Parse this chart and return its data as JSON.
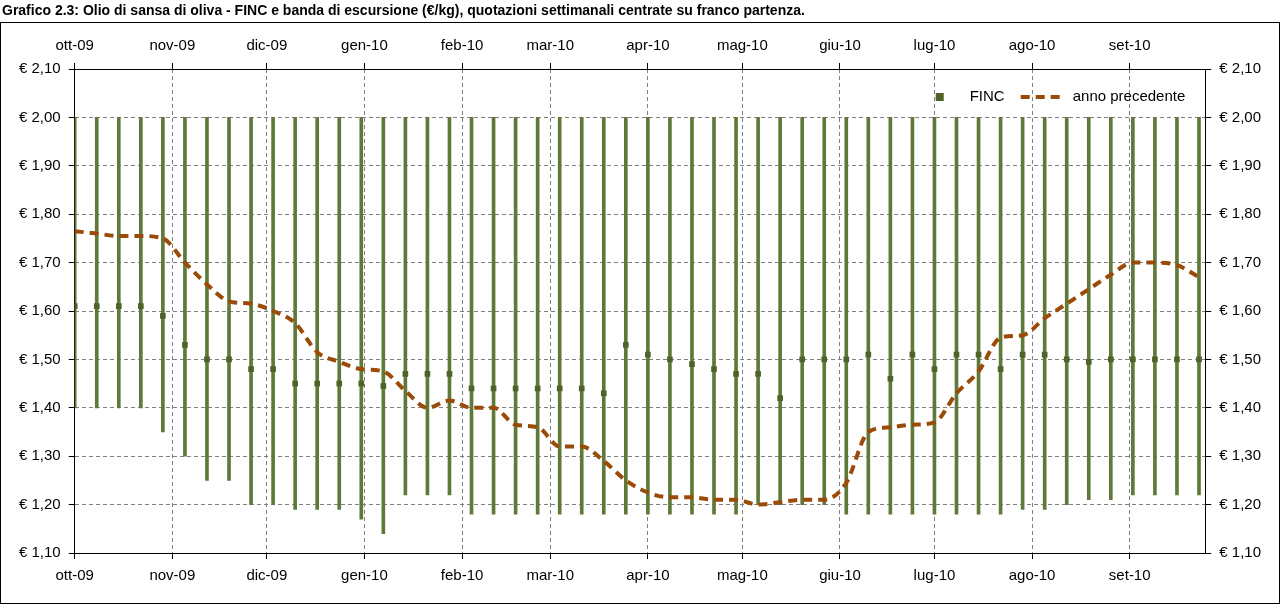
{
  "chart_data": {
    "type": "bar",
    "title": "Grafico 2.3: Olio di sansa di oliva - FINC e banda di escursione (€/kg), quotazioni settimanali centrate su franco partenza.",
    "x": [
      "2009-10-01",
      "2009-10-08",
      "2009-10-15",
      "2009-10-22",
      "2009-10-29",
      "2009-11-05",
      "2009-11-12",
      "2009-11-19",
      "2009-11-26",
      "2009-12-03",
      "2009-12-10",
      "2009-12-17",
      "2009-12-24",
      "2009-12-31",
      "2010-01-07",
      "2010-01-14",
      "2010-01-21",
      "2010-01-28",
      "2010-02-04",
      "2010-02-11",
      "2010-02-18",
      "2010-02-25",
      "2010-03-04",
      "2010-03-11",
      "2010-03-18",
      "2010-03-25",
      "2010-04-01",
      "2010-04-08",
      "2010-04-15",
      "2010-04-22",
      "2010-04-29",
      "2010-05-06",
      "2010-05-13",
      "2010-05-20",
      "2010-05-27",
      "2010-06-03",
      "2010-06-10",
      "2010-06-17",
      "2010-06-24",
      "2010-07-01",
      "2010-07-08",
      "2010-07-15",
      "2010-07-22",
      "2010-07-29",
      "2010-08-05",
      "2010-08-12",
      "2010-08-19",
      "2010-08-26",
      "2010-09-02",
      "2010-09-09",
      "2010-09-16",
      "2010-09-23"
    ],
    "series": [
      {
        "color": "#5f7a38",
        "base": [
          1.4,
          1.4,
          1.4,
          1.4,
          1.35,
          1.3,
          1.25,
          1.25,
          1.2,
          1.2,
          1.19,
          1.19,
          1.19,
          1.17,
          1.14,
          1.22,
          1.22,
          1.22,
          1.18,
          1.18,
          1.18,
          1.18,
          1.18,
          1.18,
          1.18,
          1.18,
          1.18,
          1.18,
          1.18,
          1.18,
          1.18,
          1.2,
          1.2,
          1.2,
          1.2,
          1.18,
          1.18,
          1.18,
          1.18,
          1.18,
          1.18,
          1.18,
          1.18,
          1.19,
          1.19,
          1.2,
          1.21,
          1.21,
          1.22,
          1.22,
          1.22,
          1.22
        ],
        "values": [
          0.6,
          0.6,
          0.6,
          0.6,
          0.65,
          0.7,
          0.75,
          0.75,
          0.8,
          0.8,
          0.81,
          0.81,
          0.81,
          0.83,
          0.86,
          0.78,
          0.78,
          0.78,
          0.82,
          0.82,
          0.82,
          0.82,
          0.82,
          0.82,
          0.82,
          0.82,
          0.82,
          0.82,
          0.82,
          0.82,
          0.82,
          0.8,
          0.8,
          0.8,
          0.8,
          0.82,
          0.82,
          0.82,
          0.82,
          0.82,
          0.82,
          0.82,
          0.82,
          0.81,
          0.81,
          0.8,
          0.79,
          0.79,
          0.78,
          0.78,
          0.78,
          0.78
        ]
      },
      {
        "type": "scatter",
        "name": "FINC",
        "color": "#4f6228",
        "marker": "square",
        "values": [
          1.61,
          1.61,
          1.61,
          1.61,
          1.59,
          1.53,
          1.5,
          1.5,
          1.48,
          1.48,
          1.45,
          1.45,
          1.45,
          1.45,
          1.445,
          1.47,
          1.47,
          1.47,
          1.44,
          1.44,
          1.44,
          1.44,
          1.44,
          1.44,
          1.43,
          1.53,
          1.51,
          1.5,
          1.49,
          1.48,
          1.47,
          1.47,
          1.42,
          1.5,
          1.5,
          1.5,
          1.51,
          1.46,
          1.51,
          1.48,
          1.51,
          1.51,
          1.48,
          1.51,
          1.51,
          1.5,
          1.495,
          1.5,
          1.5,
          1.5,
          1.5,
          1.5
        ]
      },
      {
        "type": "line",
        "name": "anno precedente",
        "color": "#9c4a08",
        "line_style": "dashed",
        "values": [
          1.765,
          1.76,
          1.755,
          1.755,
          1.75,
          1.7,
          1.655,
          1.62,
          1.615,
          1.6,
          1.575,
          1.515,
          1.495,
          1.48,
          1.475,
          1.435,
          1.4,
          1.415,
          1.4,
          1.4,
          1.365,
          1.36,
          1.32,
          1.32,
          1.29,
          1.25,
          1.225,
          1.215,
          1.215,
          1.21,
          1.21,
          1.2,
          1.205,
          1.21,
          1.21,
          1.245,
          1.35,
          1.36,
          1.365,
          1.37,
          1.43,
          1.475,
          1.545,
          1.55,
          1.585,
          1.615,
          1.645,
          1.675,
          1.7,
          1.7,
          1.695,
          1.67
        ]
      }
    ],
    "xlim": [
      "2009-10-01",
      "2010-09-25"
    ],
    "xticks": [
      {
        "value": "2009-10-01",
        "label": "ott-09"
      },
      {
        "value": "2009-11-01",
        "label": "nov-09"
      },
      {
        "value": "2009-12-01",
        "label": "dic-09"
      },
      {
        "value": "2010-01-01",
        "label": "gen-10"
      },
      {
        "value": "2010-02-01",
        "label": "feb-10"
      },
      {
        "value": "2010-03-01",
        "label": "mar-10"
      },
      {
        "value": "2010-04-01",
        "label": "apr-10"
      },
      {
        "value": "2010-05-01",
        "label": "mag-10"
      },
      {
        "value": "2010-06-01",
        "label": "giu-10"
      },
      {
        "value": "2010-07-01",
        "label": "lug-10"
      },
      {
        "value": "2010-08-01",
        "label": "ago-10"
      },
      {
        "value": "2010-09-01",
        "label": "set-10"
      }
    ],
    "x2lim": [
      "2009-10-01",
      "2010-09-25"
    ],
    "x2ticks": [
      {
        "value": "2009-10-01",
        "label": "ott-09"
      },
      {
        "value": "2009-11-01",
        "label": "nov-09"
      },
      {
        "value": "2009-12-01",
        "label": "dic-09"
      },
      {
        "value": "2010-01-01",
        "label": "gen-10"
      },
      {
        "value": "2010-02-01",
        "label": "feb-10"
      },
      {
        "value": "2010-03-01",
        "label": "mar-10"
      },
      {
        "value": "2010-04-01",
        "label": "apr-10"
      },
      {
        "value": "2010-05-01",
        "label": "mag-10"
      },
      {
        "value": "2010-06-01",
        "label": "giu-10"
      },
      {
        "value": "2010-07-01",
        "label": "lug-10"
      },
      {
        "value": "2010-08-01",
        "label": "ago-10"
      },
      {
        "value": "2010-09-01",
        "label": "set-10"
      }
    ],
    "ylim": [
      1.1,
      2.1
    ],
    "yticks": [
      {
        "value": 1.1,
        "label": "€ 1,10"
      },
      {
        "value": 1.2,
        "label": "€ 1,20"
      },
      {
        "value": 1.3,
        "label": "€ 1,30"
      },
      {
        "value": 1.4,
        "label": "€ 1,40"
      },
      {
        "value": 1.5,
        "label": "€ 1,50"
      },
      {
        "value": 1.6,
        "label": "€ 1,60"
      },
      {
        "value": 1.7,
        "label": "€ 1,70"
      },
      {
        "value": 1.8,
        "label": "€ 1,80"
      },
      {
        "value": 1.9,
        "label": "€ 1,90"
      },
      {
        "value": 2.0,
        "label": "€ 2,00"
      },
      {
        "value": 2.1,
        "label": "€ 2,10"
      }
    ],
    "y2lim": [
      1.1,
      2.1
    ],
    "y2ticks": [
      {
        "value": 1.1,
        "label": "€ 1,10"
      },
      {
        "value": 1.2,
        "label": "€ 1,20"
      },
      {
        "value": 1.3,
        "label": "€ 1,30"
      },
      {
        "value": 1.4,
        "label": "€ 1,40"
      },
      {
        "value": 1.5,
        "label": "€ 1,50"
      },
      {
        "value": 1.6,
        "label": "€ 1,60"
      },
      {
        "value": 1.7,
        "label": "€ 1,70"
      },
      {
        "value": 1.8,
        "label": "€ 1,80"
      },
      {
        "value": 1.9,
        "label": "€ 1,90"
      },
      {
        "value": 2.0,
        "label": "€ 2,00"
      },
      {
        "value": 2.1,
        "label": "€ 2,10"
      }
    ],
    "grid": true,
    "legend": "top right"
  }
}
